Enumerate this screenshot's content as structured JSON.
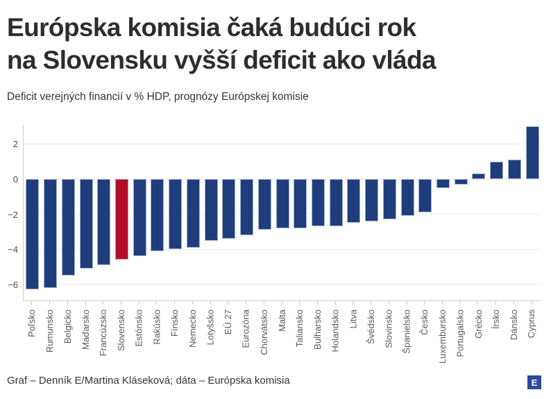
{
  "header": {
    "title_line1": "Európska komisia čaká budúci rok",
    "title_line2": "na Slovensku vyšší deficit ako vláda",
    "subtitle": "Deficit verejných financií v % HDP, prognózy Európskej komisie"
  },
  "footer": {
    "credit": "Graf – Denník E/Martina Kláseková; dáta – Európska komisia",
    "logo_letter": "E"
  },
  "colors": {
    "bar": "#1e3d7a",
    "bar_border": "#9fb1d3",
    "highlight": "#b00d26",
    "highlight_border": "#d08d9b",
    "grid": "#e9e9e9",
    "axis": "#cccccc",
    "title_text": "#2d2d2d",
    "tick_text": "#595959",
    "logo_bg": "#2b4a9e"
  },
  "chart_data": {
    "type": "bar",
    "title": "Európska komisia čaká budúci rok na Slovensku vyšší deficit ako vláda",
    "subtitle": "Deficit verejných financií v % HDP, prognózy Európskej komisie",
    "xlabel": "",
    "ylabel": "",
    "unit": "% HDP",
    "categories": [
      "Poľsko",
      "Rumunsko",
      "Belgicko",
      "Maďarsko",
      "Francúzsko",
      "Slovensko",
      "Estónsko",
      "Rakúsko",
      "Fínsko",
      "Nemecko",
      "Lotyšsko",
      "EÚ 27",
      "Eurozóna",
      "Chorvátsko",
      "Malta",
      "Taliansko",
      "Bulharsko",
      "Holandsko",
      "Litva",
      "Švédsko",
      "Slovinsko",
      "Španielsko",
      "Česko",
      "Luxembursko",
      "Portugalsko",
      "Grécko",
      "Írsko",
      "Dánsko",
      "Cyprus"
    ],
    "values": [
      -6.3,
      -6.2,
      -5.5,
      -5.1,
      -4.9,
      -4.6,
      -4.4,
      -4.1,
      -4.0,
      -3.9,
      -3.5,
      -3.4,
      -3.2,
      -2.9,
      -2.8,
      -2.8,
      -2.7,
      -2.7,
      -2.5,
      -2.4,
      -2.3,
      -2.1,
      -1.9,
      -0.5,
      -0.3,
      0.3,
      1.0,
      1.1,
      3.0
    ],
    "highlight_category": "Slovensko",
    "ytick_values": [
      2,
      0,
      -2,
      -4,
      -6
    ],
    "ytick_labels": [
      "2",
      "0",
      "−2",
      "−4",
      "−6"
    ],
    "ylim": [
      -6.9,
      3.1
    ],
    "grid": true,
    "legend": false,
    "x_labels_rotated_90": true
  }
}
